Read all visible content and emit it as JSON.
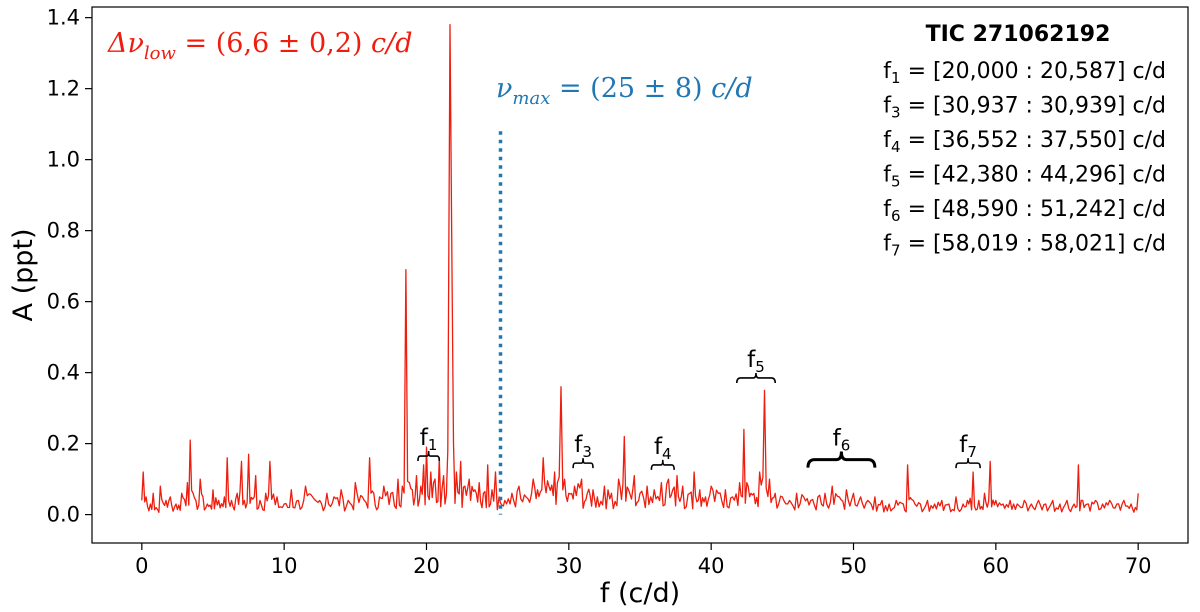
{
  "chart_data": {
    "type": "line",
    "title": "",
    "xlabel": "f (c/d)",
    "ylabel": "A (ppt)",
    "xlim": [
      -3.5,
      73.5
    ],
    "ylim": [
      -0.08,
      1.43
    ],
    "x_ticks": [
      0,
      10,
      20,
      30,
      40,
      50,
      60,
      70
    ],
    "x_tick_labels": [
      "0",
      "10",
      "20",
      "30",
      "40",
      "50",
      "60",
      "70"
    ],
    "y_ticks": [
      0.0,
      0.2,
      0.4,
      0.6,
      0.8,
      1.0,
      1.2,
      1.4
    ],
    "y_tick_labels": [
      "0.0",
      "0.2",
      "0.4",
      "0.6",
      "0.8",
      "1.0",
      "1.2",
      "1.4"
    ],
    "grid": false,
    "series_color": "#ee1d0e",
    "series": [
      {
        "x": [
          0.0,
          0.1,
          0.3,
          0.6,
          0.8,
          1.0,
          1.3,
          1.7,
          2.0,
          2.4,
          2.8,
          3.2,
          3.4,
          3.6,
          3.8,
          4.1,
          4.3,
          4.6,
          5.0,
          5.4,
          5.8,
          6.0,
          6.3,
          6.7,
          7.0,
          7.2,
          7.5,
          7.9,
          8.0,
          8.3,
          8.7,
          9.0,
          9.5,
          10.0,
          10.5,
          11.0,
          11.5,
          12.0,
          12.5,
          13.0,
          13.5,
          14.0,
          14.5,
          15.0,
          15.5,
          16.0,
          16.3,
          16.7,
          17.0,
          17.5,
          18.0,
          18.3,
          18.55,
          18.8,
          19.0,
          19.3,
          19.6,
          19.8,
          20.0,
          20.3,
          20.6,
          20.9,
          21.2,
          21.5,
          21.65,
          21.8,
          21.9,
          22.1,
          22.4,
          22.7,
          23.0,
          23.4,
          23.7,
          24.0,
          24.3,
          24.6,
          24.85,
          25.1,
          25.5,
          26.0,
          26.5,
          27.0,
          27.5,
          27.8,
          28.2,
          28.6,
          29.0,
          29.2,
          29.45,
          29.7,
          30.0,
          30.4,
          30.9,
          31.3,
          31.7,
          32.0,
          32.5,
          33.0,
          33.5,
          33.9,
          34.2,
          34.6,
          35.0,
          35.5,
          36.0,
          36.5,
          37.0,
          37.3,
          37.6,
          38.0,
          38.5,
          38.8,
          39.2,
          39.6,
          40.0,
          40.5,
          41.0,
          41.5,
          42.0,
          42.3,
          42.6,
          43.0,
          43.4,
          43.75,
          44.1,
          44.5,
          45.0,
          45.5,
          46.0,
          46.5,
          47.0,
          47.5,
          48.0,
          48.5,
          49.0,
          49.5,
          50.0,
          50.5,
          51.0,
          51.5,
          52.0,
          52.5,
          53.0,
          53.5,
          53.8,
          54.2,
          54.7,
          55.2,
          55.7,
          56.2,
          56.7,
          57.2,
          57.7,
          58.0,
          58.4,
          58.8,
          59.2,
          59.6,
          60.0,
          60.5,
          61.0,
          61.5,
          62.0,
          62.5,
          63.0,
          63.5,
          64.0,
          64.5,
          65.0,
          65.5,
          65.8,
          66.1,
          66.5,
          67.0,
          67.5,
          68.0,
          68.5,
          69.0,
          69.5,
          69.8,
          70.0
        ],
        "y": [
          0.04,
          0.12,
          0.05,
          0.03,
          0.06,
          0.02,
          0.08,
          0.04,
          0.05,
          0.03,
          0.06,
          0.09,
          0.21,
          0.06,
          0.04,
          0.1,
          0.05,
          0.03,
          0.07,
          0.04,
          0.05,
          0.16,
          0.04,
          0.06,
          0.15,
          0.04,
          0.17,
          0.05,
          0.11,
          0.04,
          0.06,
          0.15,
          0.05,
          0.03,
          0.07,
          0.04,
          0.08,
          0.05,
          0.04,
          0.06,
          0.05,
          0.07,
          0.04,
          0.09,
          0.05,
          0.16,
          0.06,
          0.05,
          0.08,
          0.06,
          0.1,
          0.08,
          0.69,
          0.09,
          0.07,
          0.11,
          0.08,
          0.14,
          0.19,
          0.12,
          0.1,
          0.16,
          0.11,
          0.18,
          1.38,
          0.65,
          0.2,
          0.12,
          0.15,
          0.08,
          0.1,
          0.07,
          0.09,
          0.06,
          0.14,
          0.07,
          0.12,
          0.05,
          0.04,
          0.06,
          0.08,
          0.05,
          0.1,
          0.07,
          0.16,
          0.08,
          0.12,
          0.09,
          0.36,
          0.1,
          0.06,
          0.08,
          0.1,
          0.06,
          0.07,
          0.05,
          0.08,
          0.06,
          0.1,
          0.22,
          0.07,
          0.11,
          0.06,
          0.08,
          0.07,
          0.09,
          0.1,
          0.07,
          0.11,
          0.08,
          0.06,
          0.12,
          0.07,
          0.05,
          0.08,
          0.06,
          0.07,
          0.05,
          0.09,
          0.24,
          0.08,
          0.06,
          0.12,
          0.35,
          0.1,
          0.06,
          0.05,
          0.04,
          0.06,
          0.05,
          0.04,
          0.05,
          0.06,
          0.08,
          0.05,
          0.07,
          0.06,
          0.05,
          0.04,
          0.05,
          0.04,
          0.03,
          0.04,
          0.03,
          0.14,
          0.04,
          0.03,
          0.04,
          0.03,
          0.04,
          0.03,
          0.05,
          0.03,
          0.04,
          0.12,
          0.04,
          0.06,
          0.15,
          0.04,
          0.03,
          0.04,
          0.03,
          0.04,
          0.03,
          0.04,
          0.03,
          0.04,
          0.03,
          0.04,
          0.03,
          0.14,
          0.04,
          0.03,
          0.04,
          0.03,
          0.04,
          0.03,
          0.04,
          0.03,
          0.02,
          0.06
        ]
      }
    ],
    "annotations": {
      "delta_nu": {
        "lhs": "Δν",
        "sub": "low",
        "rhs": " = (6,6 ± 0,2) ",
        "unit": "c/d",
        "color": "#ee1d0e"
      },
      "nu_max": {
        "lhs": "ν",
        "sub": "max",
        "rhs": " = (25 ± 8) ",
        "unit": "c/d",
        "color": "#1f77b4",
        "x": 25.2,
        "y_top": 1.08
      },
      "star_id": "TIC 271062192",
      "ranges": [
        {
          "name": "f",
          "sub": "1",
          "text": " = [20,000 : 20,587] c/d"
        },
        {
          "name": "f",
          "sub": "3",
          "text": " = [30,937 : 30,939] c/d"
        },
        {
          "name": "f",
          "sub": "4",
          "text": " = [36,552 : 37,550] c/d"
        },
        {
          "name": "f",
          "sub": "5",
          "text": " = [42,380 : 44,296] c/d"
        },
        {
          "name": "f",
          "sub": "6",
          "text": " = [48,590 : 51,242] c/d"
        },
        {
          "name": "f",
          "sub": "7",
          "text": " = [58,019 : 58,021] c/d"
        }
      ],
      "braces": [
        {
          "name": "f",
          "sub": "1",
          "x0": 19.4,
          "x1": 20.9,
          "y": 0.165
        },
        {
          "name": "f",
          "sub": "3",
          "x0": 30.3,
          "x1": 31.7,
          "y": 0.145
        },
        {
          "name": "f",
          "sub": "4",
          "x0": 35.8,
          "x1": 37.4,
          "y": 0.14
        },
        {
          "name": "f",
          "sub": "5",
          "x0": 41.8,
          "x1": 44.5,
          "y": 0.385
        },
        {
          "name": "f",
          "sub": "6",
          "x0": 46.8,
          "x1": 51.5,
          "y": 0.155
        },
        {
          "name": "f",
          "sub": "7",
          "x0": 57.2,
          "x1": 58.9,
          "y": 0.145
        }
      ]
    }
  }
}
